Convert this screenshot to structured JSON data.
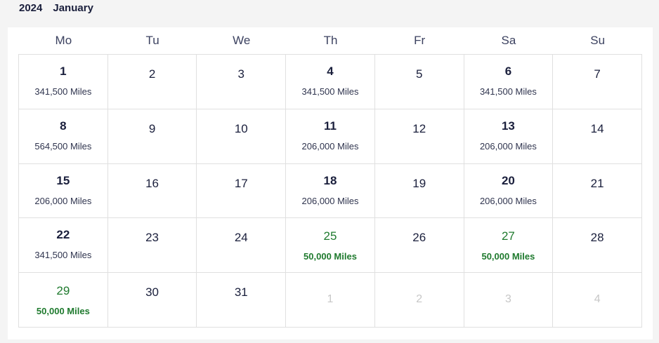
{
  "header": {
    "year": "2024",
    "month": "January"
  },
  "weekdays": [
    "Mo",
    "Tu",
    "We",
    "Th",
    "Fr",
    "Sa",
    "Su"
  ],
  "days": [
    {
      "day": "1",
      "miles": "341,500 Miles",
      "state": "priced"
    },
    {
      "day": "2",
      "miles": "",
      "state": "plain"
    },
    {
      "day": "3",
      "miles": "",
      "state": "plain"
    },
    {
      "day": "4",
      "miles": "341,500 Miles",
      "state": "priced"
    },
    {
      "day": "5",
      "miles": "",
      "state": "plain"
    },
    {
      "day": "6",
      "miles": "341,500 Miles",
      "state": "priced"
    },
    {
      "day": "7",
      "miles": "",
      "state": "plain"
    },
    {
      "day": "8",
      "miles": "564,500 Miles",
      "state": "priced"
    },
    {
      "day": "9",
      "miles": "",
      "state": "plain"
    },
    {
      "day": "10",
      "miles": "",
      "state": "plain"
    },
    {
      "day": "11",
      "miles": "206,000 Miles",
      "state": "priced"
    },
    {
      "day": "12",
      "miles": "",
      "state": "plain"
    },
    {
      "day": "13",
      "miles": "206,000 Miles",
      "state": "priced"
    },
    {
      "day": "14",
      "miles": "",
      "state": "plain"
    },
    {
      "day": "15",
      "miles": "206,000 Miles",
      "state": "priced"
    },
    {
      "day": "16",
      "miles": "",
      "state": "plain"
    },
    {
      "day": "17",
      "miles": "",
      "state": "plain"
    },
    {
      "day": "18",
      "miles": "206,000 Miles",
      "state": "priced"
    },
    {
      "day": "19",
      "miles": "",
      "state": "plain"
    },
    {
      "day": "20",
      "miles": "206,000 Miles",
      "state": "priced"
    },
    {
      "day": "21",
      "miles": "",
      "state": "plain"
    },
    {
      "day": "22",
      "miles": "341,500 Miles",
      "state": "priced"
    },
    {
      "day": "23",
      "miles": "",
      "state": "plain"
    },
    {
      "day": "24",
      "miles": "",
      "state": "plain"
    },
    {
      "day": "25",
      "miles": "50,000 Miles",
      "state": "deal"
    },
    {
      "day": "26",
      "miles": "",
      "state": "plain"
    },
    {
      "day": "27",
      "miles": "50,000 Miles",
      "state": "deal"
    },
    {
      "day": "28",
      "miles": "",
      "state": "plain"
    },
    {
      "day": "29",
      "miles": "50,000 Miles",
      "state": "deal"
    },
    {
      "day": "30",
      "miles": "",
      "state": "plain"
    },
    {
      "day": "31",
      "miles": "",
      "state": "plain"
    },
    {
      "day": "1",
      "miles": "",
      "state": "muted"
    },
    {
      "day": "2",
      "miles": "",
      "state": "muted"
    },
    {
      "day": "3",
      "miles": "",
      "state": "muted"
    },
    {
      "day": "4",
      "miles": "",
      "state": "muted"
    }
  ],
  "colors": {
    "deal": "#1f7a2e",
    "text": "#1a1f3c",
    "muted": "#c7c7c7"
  }
}
